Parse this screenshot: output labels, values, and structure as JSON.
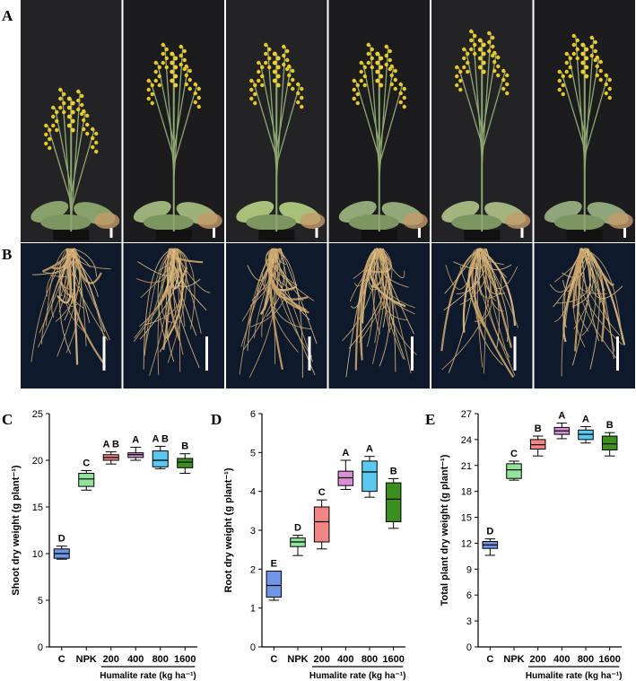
{
  "panels": {
    "a": "A",
    "b": "B",
    "c": "C",
    "d": "D",
    "e": "E"
  },
  "colors": {
    "C": "#6f95e6",
    "NPK": "#90e39a",
    "200": "#f08784",
    "400": "#d98fd6",
    "800": "#5cc8f0",
    "1600": "#3a8f1f"
  },
  "chart_data": [
    {
      "type": "box",
      "ylabel": "Shoot dry weight (g plant⁻¹)",
      "xlabel": "Humalite rate (kg ha⁻¹)",
      "categories": [
        "C",
        "NPK",
        "200",
        "400",
        "800",
        "1600"
      ],
      "ylim": [
        0,
        25
      ],
      "yticks": [
        0,
        5,
        10,
        15,
        20,
        25
      ],
      "boxes": [
        {
          "min": 9.4,
          "q1": 9.5,
          "median": 10.0,
          "q3": 10.5,
          "max": 10.8,
          "letter": "D"
        },
        {
          "min": 16.8,
          "q1": 17.2,
          "median": 18.0,
          "q3": 18.6,
          "max": 18.9,
          "letter": "C"
        },
        {
          "min": 19.6,
          "q1": 20.0,
          "median": 20.3,
          "q3": 20.6,
          "max": 20.9,
          "letter": "A B"
        },
        {
          "min": 20.0,
          "q1": 20.3,
          "median": 20.6,
          "q3": 20.8,
          "max": 21.4,
          "letter": "A"
        },
        {
          "min": 19.1,
          "q1": 19.3,
          "median": 20.0,
          "q3": 21.0,
          "max": 21.5,
          "letter": "A B"
        },
        {
          "min": 18.6,
          "q1": 19.2,
          "median": 19.8,
          "q3": 20.2,
          "max": 20.7,
          "letter": "B"
        }
      ]
    },
    {
      "type": "box",
      "ylabel": "Root dry weight (g plant⁻¹)",
      "xlabel": "Humalite rate (kg ha⁻¹)",
      "categories": [
        "C",
        "NPK",
        "200",
        "400",
        "800",
        "1600"
      ],
      "ylim": [
        0,
        6
      ],
      "yticks": [
        0,
        1,
        2,
        3,
        4,
        5,
        6
      ],
      "boxes": [
        {
          "min": 1.2,
          "q1": 1.28,
          "median": 1.58,
          "q3": 1.95,
          "max": 1.95,
          "letter": "E"
        },
        {
          "min": 2.35,
          "q1": 2.58,
          "median": 2.7,
          "q3": 2.8,
          "max": 2.87,
          "letter": "D"
        },
        {
          "min": 2.52,
          "q1": 2.7,
          "median": 3.22,
          "q3": 3.6,
          "max": 3.78,
          "letter": "C"
        },
        {
          "min": 4.05,
          "q1": 4.15,
          "median": 4.35,
          "q3": 4.52,
          "max": 4.8,
          "letter": "A"
        },
        {
          "min": 3.85,
          "q1": 4.0,
          "median": 4.5,
          "q3": 4.78,
          "max": 4.9,
          "letter": "A"
        },
        {
          "min": 3.05,
          "q1": 3.22,
          "median": 3.8,
          "q3": 4.22,
          "max": 4.33,
          "letter": "B"
        }
      ]
    },
    {
      "type": "box",
      "ylabel": "Total plant dry weight (g plant⁻¹)",
      "xlabel": "Humalite rate (kg ha⁻¹)",
      "categories": [
        "C",
        "NPK",
        "200",
        "400",
        "800",
        "1600"
      ],
      "ylim": [
        0,
        27
      ],
      "yticks": [
        0,
        3,
        6,
        9,
        12,
        15,
        18,
        21,
        24,
        27
      ],
      "boxes": [
        {
          "min": 10.6,
          "q1": 11.4,
          "median": 11.8,
          "q3": 12.2,
          "max": 12.5,
          "letter": "D"
        },
        {
          "min": 19.3,
          "q1": 19.5,
          "median": 20.5,
          "q3": 21.2,
          "max": 21.5,
          "letter": "C"
        },
        {
          "min": 22.1,
          "q1": 22.9,
          "median": 23.4,
          "q3": 24.0,
          "max": 24.4,
          "letter": "B"
        },
        {
          "min": 24.1,
          "q1": 24.6,
          "median": 25.0,
          "q3": 25.4,
          "max": 25.9,
          "letter": "A"
        },
        {
          "min": 23.6,
          "q1": 24.0,
          "median": 24.6,
          "q3": 25.1,
          "max": 25.5,
          "letter": "A"
        },
        {
          "min": 22.1,
          "q1": 22.8,
          "median": 23.5,
          "q3": 24.4,
          "max": 24.8,
          "letter": "B"
        }
      ]
    }
  ]
}
